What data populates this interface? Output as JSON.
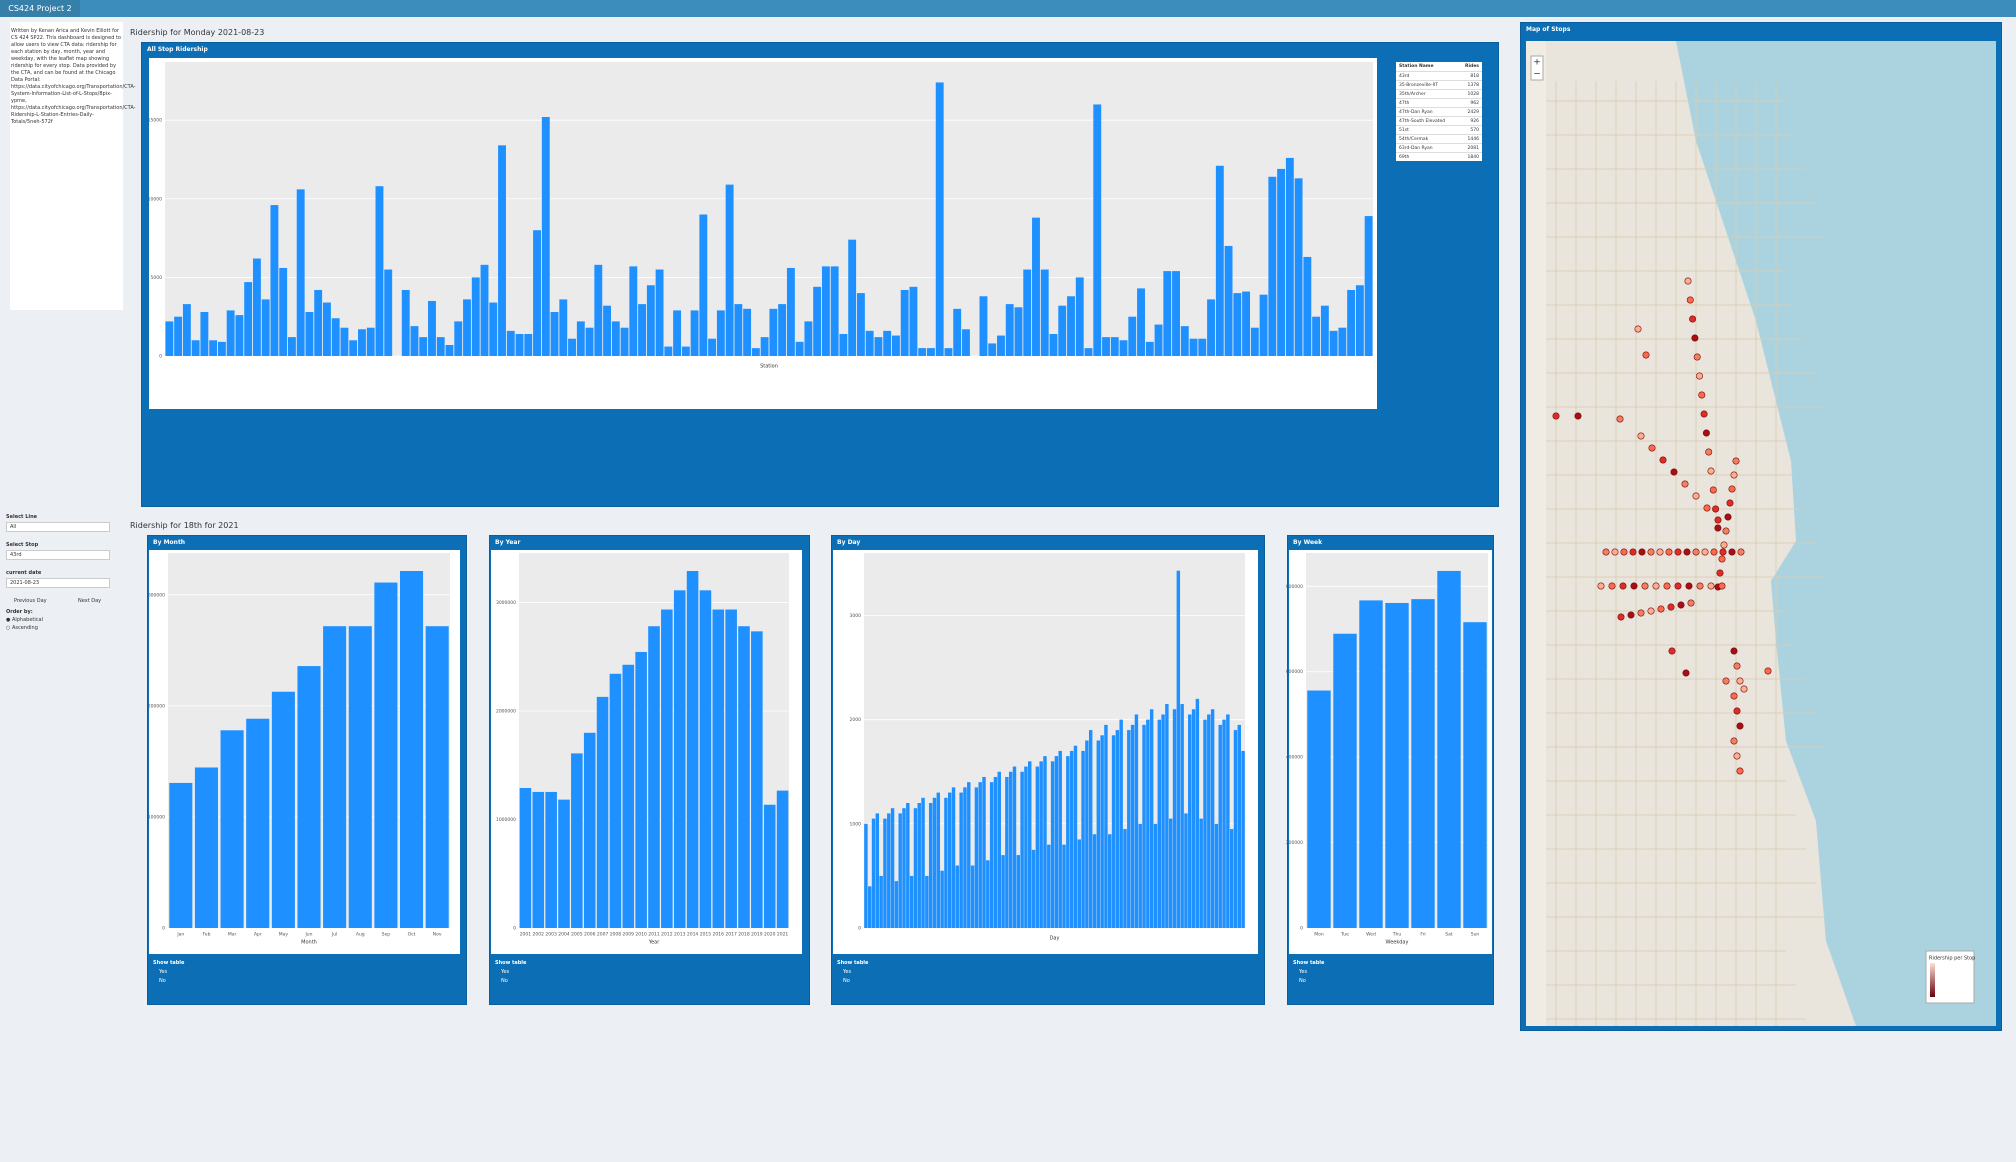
{
  "header": {
    "title": "CS424 Project 2"
  },
  "sidebar": {
    "about": "Written by Kenan Arica and Kevin Elliott for CS 424 SP22. This dashboard is designed to allow users to view CTA data: ridership for each station by day, month, year and weekday, with the leaflet map showing ridership for every stop. Data provided by the CTA, and can be found at the Chicago Data Portal: https://data.cityofchicago.org/Transportation/CTA-System-Information-List-of-L-Stops/8pix-ypme, https://data.cityofchicago.org/Transportation/CTA-Ridership-L-Station-Entries-Daily-Totals/5neh-572f",
    "select_line": "Select Line",
    "line_value": "All",
    "select_stop": "Select Stop",
    "stop_value": "43rd",
    "current_date": "current date",
    "date_value": "2021-08-23",
    "previous_day": "Previous Day",
    "next_day": "Next Day",
    "order_by": "Order by:",
    "order_options": [
      "Alphabetical",
      "Ascending"
    ]
  },
  "sections": {
    "top": "Ridership for Monday 2021-08-23",
    "bottom": "Ridership for 18th for 2021"
  },
  "ui": {
    "show_table": "Show table",
    "yes": "Yes",
    "no": "No"
  },
  "table": {
    "headers": [
      "Station Name",
      "Rides"
    ],
    "rows": [
      [
        "43rd",
        "818"
      ],
      [
        "35-Bronzeville-IIT",
        "1378"
      ],
      [
        "35th/Archer",
        "1028"
      ],
      [
        "47th",
        "962"
      ],
      [
        "47th-Dan Ryan",
        "2429"
      ],
      [
        "47th-South Elevated",
        "926"
      ],
      [
        "51st",
        "570"
      ],
      [
        "54th/Cermak",
        "1446"
      ],
      [
        "63rd-Dan Ryan",
        "2081"
      ],
      [
        "69th",
        "1840"
      ]
    ]
  },
  "map": {
    "title": "Map of Stops",
    "legend_title": "Ridership per Stop"
  },
  "chart_data": [
    {
      "type": "bar",
      "title": "All Stop Ridership",
      "xlabel": "Station",
      "color": "#1e90ff",
      "grid": true,
      "ylim": [
        0,
        18700
      ],
      "yticks": [
        0,
        5000,
        10000,
        15000
      ],
      "values": [
        2200,
        2500,
        3300,
        1000,
        2800,
        1000,
        900,
        2900,
        2600,
        4700,
        6200,
        3600,
        9600,
        5600,
        1200,
        10600,
        2800,
        4200,
        3400,
        2400,
        1800,
        1000,
        1700,
        1800,
        10800,
        5500,
        0,
        4200,
        1900,
        1200,
        3500,
        1200,
        700,
        2200,
        3600,
        5000,
        5800,
        3400,
        13400,
        1600,
        1400,
        1400,
        8000,
        15200,
        2800,
        3600,
        1100,
        2200,
        1800,
        5800,
        3200,
        2200,
        1800,
        5700,
        3300,
        4500,
        5500,
        600,
        2900,
        600,
        2900,
        9000,
        1100,
        2900,
        10900,
        3300,
        3000,
        500,
        1200,
        3000,
        3300,
        5600,
        900,
        2200,
        4400,
        5700,
        5700,
        1400,
        7400,
        4000,
        1600,
        1200,
        1600,
        1300,
        4200,
        4400,
        500,
        500,
        17400,
        500,
        3000,
        1700,
        0,
        3800,
        800,
        1300,
        3300,
        3100,
        5500,
        8800,
        5500,
        1400,
        3200,
        3800,
        5000,
        500,
        16000,
        1200,
        1200,
        1000,
        2500,
        4300,
        900,
        2000,
        5400,
        5400,
        1900,
        1100,
        1100,
        3600,
        12100,
        7000,
        4000,
        4100,
        1800,
        3900,
        11400,
        11900,
        12600,
        11300,
        6300,
        2500,
        3200,
        1600,
        1800,
        4200,
        4500,
        8900
      ]
    },
    {
      "type": "bar",
      "title": "By Month",
      "xlabel": "Month",
      "color": "#1e90ff",
      "grid": true,
      "ylim": [
        0,
        337600
      ],
      "yticks": [
        0,
        100000,
        200000,
        300000
      ],
      "categories": [
        "Jan",
        "Feb",
        "Mar",
        "Apr",
        "May",
        "Jun",
        "Jul",
        "Aug",
        "Sep",
        "Oct",
        "Nov"
      ],
      "values": [
        130600,
        144500,
        178000,
        188400,
        212700,
        235800,
        271700,
        271700,
        311000,
        321400,
        271700
      ]
    },
    {
      "type": "bar",
      "title": "By Year",
      "xlabel": "Year",
      "color": "#1e90ff",
      "grid": true,
      "ylim": [
        0,
        3456000
      ],
      "yticks": [
        0,
        1000000,
        2000000,
        3000000
      ],
      "categories": [
        "2001",
        "2002",
        "2003",
        "2004",
        "2005",
        "2006",
        "2007",
        "2008",
        "2009",
        "2010",
        "2011",
        "2012",
        "2013",
        "2014",
        "2015",
        "2016",
        "2017",
        "2018",
        "2019",
        "2020",
        "2021"
      ],
      "values": [
        1290000,
        1254000,
        1254000,
        1183000,
        1609000,
        1799000,
        2130000,
        2343000,
        2426000,
        2544000,
        2781000,
        2935000,
        3112000,
        3290000,
        3112000,
        2935000,
        2935000,
        2781000,
        2734000,
        1136000,
        1266000
      ]
    },
    {
      "type": "bar",
      "title": "By Day",
      "xlabel": "Day",
      "color": "#1e90ff",
      "grid": true,
      "ylim": [
        0,
        3600
      ],
      "yticks": [
        0,
        1000,
        2000,
        3000
      ],
      "values": [
        1000,
        400,
        1050,
        1100,
        500,
        1050,
        1100,
        1150,
        450,
        1100,
        1150,
        1200,
        500,
        1150,
        1200,
        1250,
        500,
        1200,
        1250,
        1300,
        550,
        1250,
        1300,
        1350,
        600,
        1300,
        1350,
        1400,
        600,
        1350,
        1400,
        1450,
        650,
        1400,
        1450,
        1500,
        700,
        1450,
        1500,
        1550,
        700,
        1500,
        1550,
        1600,
        750,
        1550,
        1600,
        1650,
        800,
        1600,
        1650,
        1700,
        800,
        1650,
        1700,
        1750,
        850,
        1700,
        1800,
        1900,
        900,
        1800,
        1850,
        1950,
        900,
        1850,
        1900,
        2000,
        950,
        1900,
        1950,
        2050,
        1000,
        1950,
        2000,
        2100,
        1000,
        2000,
        2050,
        2150,
        1050,
        2100,
        3430,
        2150,
        1100,
        2050,
        2100,
        2200,
        1050,
        2000,
        2050,
        2100,
        1000,
        1950,
        2000,
        2050,
        950,
        1900,
        1950,
        1700
      ]
    },
    {
      "type": "bar",
      "title": "By Week",
      "xlabel": "Weekday",
      "color": "#1e90ff",
      "grid": true,
      "ylim": [
        0,
        878000
      ],
      "yticks": [
        0,
        200000,
        400000,
        600000,
        800000
      ],
      "categories": [
        "Mon",
        "Tue",
        "Wed",
        "Thu",
        "Fri",
        "Sat",
        "Sun"
      ],
      "values": [
        556000,
        689000,
        767000,
        761000,
        770000,
        836000,
        716000
      ]
    }
  ]
}
